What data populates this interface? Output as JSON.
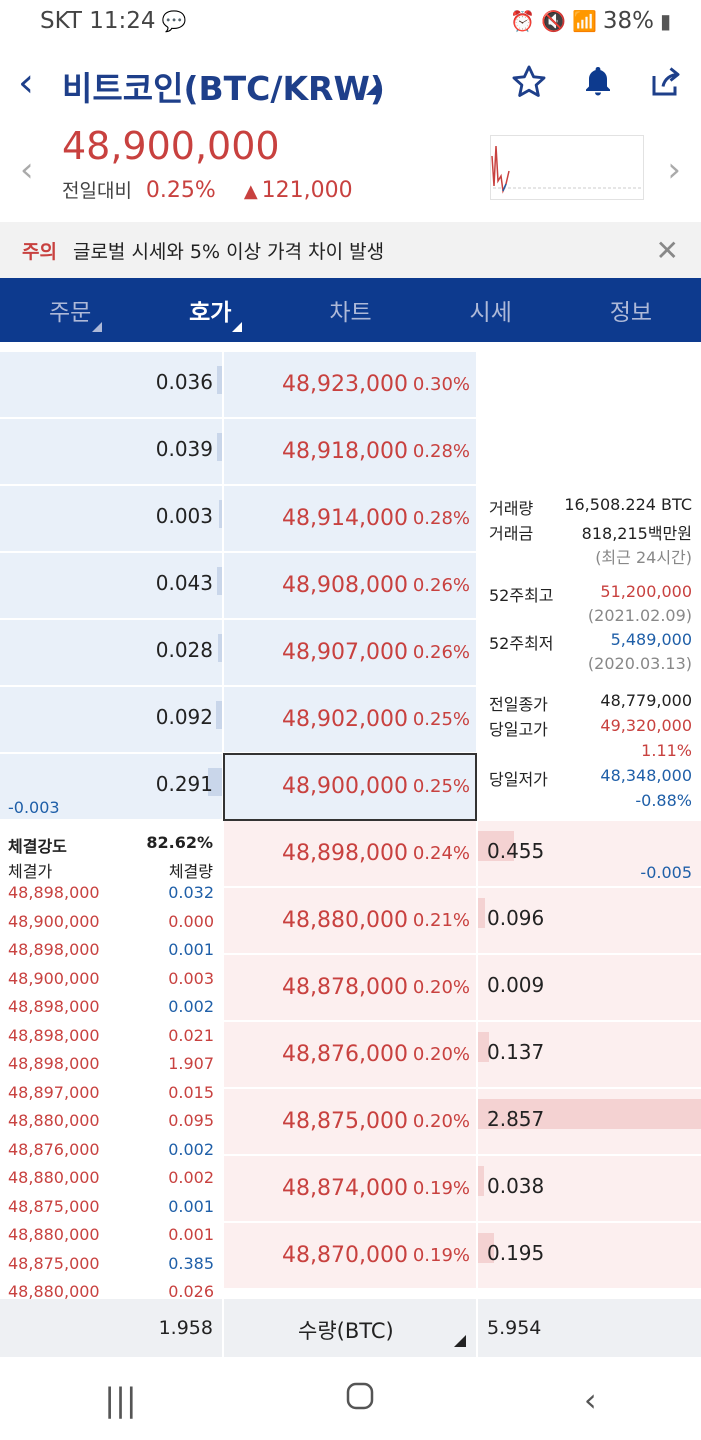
{
  "status": {
    "carrier_time": "SKT 11:24",
    "battery": "38%"
  },
  "header": {
    "title": "비트코인(BTC/KRW)"
  },
  "price": {
    "current": "48,900,000",
    "change_label": "전일대비",
    "change_pct": "0.25%",
    "change_amt": "121,000"
  },
  "notice": {
    "tag": "주의",
    "message": "글로벌 시세와 5% 이상 가격 차이 발생"
  },
  "tabs": [
    {
      "label": "주문",
      "active": false
    },
    {
      "label": "호가",
      "active": true
    },
    {
      "label": "차트",
      "active": false
    },
    {
      "label": "시세",
      "active": false
    },
    {
      "label": "정보",
      "active": false
    }
  ],
  "asks": [
    {
      "qty": "0.036",
      "price": "48,923,000",
      "pct": "0.30%",
      "bar": 0.05
    },
    {
      "qty": "0.039",
      "price": "48,918,000",
      "pct": "0.28%",
      "bar": 0.05
    },
    {
      "qty": "0.003",
      "price": "48,914,000",
      "pct": "0.28%",
      "bar": 0.01
    },
    {
      "qty": "0.043",
      "price": "48,908,000",
      "pct": "0.26%",
      "bar": 0.05
    },
    {
      "qty": "0.028",
      "price": "48,907,000",
      "pct": "0.26%",
      "bar": 0.04
    },
    {
      "qty": "0.092",
      "price": "48,902,000",
      "pct": "0.25%",
      "bar": 0.07
    },
    {
      "qty": "0.291",
      "price": "48,900,000",
      "pct": "0.25%",
      "bar": 0.16,
      "delta": "-0.003"
    }
  ],
  "bids": [
    {
      "price": "48,898,000",
      "pct": "0.24%",
      "qty": "0.455",
      "bar": 0.16,
      "delta": "-0.005"
    },
    {
      "price": "48,880,000",
      "pct": "0.21%",
      "qty": "0.096",
      "bar": 0.03
    },
    {
      "price": "48,878,000",
      "pct": "0.20%",
      "qty": "0.009",
      "bar": 0.0
    },
    {
      "price": "48,876,000",
      "pct": "0.20%",
      "qty": "0.137",
      "bar": 0.05
    },
    {
      "price": "48,875,000",
      "pct": "0.20%",
      "qty": "2.857",
      "bar": 1.0
    },
    {
      "price": "48,874,000",
      "pct": "0.19%",
      "qty": "0.038",
      "bar": 0.02
    },
    {
      "price": "48,870,000",
      "pct": "0.19%",
      "qty": "0.195",
      "bar": 0.07
    }
  ],
  "stats": {
    "volume_label": "거래량",
    "volume": "16,508.224 BTC",
    "amount_label": "거래금",
    "amount": "818,215백만원",
    "period": "(최근 24시간)",
    "high52_label": "52주최고",
    "high52": "51,200,000",
    "high52_date": "(2021.02.09)",
    "low52_label": "52주최저",
    "low52": "5,489,000",
    "low52_date": "(2020.03.13)",
    "prev_close_label": "전일종가",
    "prev_close": "48,779,000",
    "day_high_label": "당일고가",
    "day_high": "49,320,000",
    "day_high_pct": "1.11%",
    "day_low_label": "당일저가",
    "day_low": "48,348,000",
    "day_low_pct": "-0.88%"
  },
  "trades": {
    "strength_label": "체결강도",
    "strength": "82.62%",
    "price_header": "체결가",
    "qty_header": "체결량",
    "rows": [
      {
        "price": "48,898,000",
        "qty": "0.032",
        "side": "sell"
      },
      {
        "price": "48,900,000",
        "qty": "0.000",
        "side": "buy"
      },
      {
        "price": "48,898,000",
        "qty": "0.001",
        "side": "sell"
      },
      {
        "price": "48,900,000",
        "qty": "0.003",
        "side": "buy"
      },
      {
        "price": "48,898,000",
        "qty": "0.002",
        "side": "sell"
      },
      {
        "price": "48,898,000",
        "qty": "0.021",
        "side": "buy"
      },
      {
        "price": "48,898,000",
        "qty": "1.907",
        "side": "buy"
      },
      {
        "price": "48,897,000",
        "qty": "0.015",
        "side": "buy"
      },
      {
        "price": "48,880,000",
        "qty": "0.095",
        "side": "buy"
      },
      {
        "price": "48,876,000",
        "qty": "0.002",
        "side": "sell"
      },
      {
        "price": "48,880,000",
        "qty": "0.002",
        "side": "buy"
      },
      {
        "price": "48,875,000",
        "qty": "0.001",
        "side": "sell"
      },
      {
        "price": "48,880,000",
        "qty": "0.001",
        "side": "buy"
      },
      {
        "price": "48,875,000",
        "qty": "0.385",
        "side": "sell"
      },
      {
        "price": "48,880,000",
        "qty": "0.026",
        "side": "buy"
      }
    ]
  },
  "totals": {
    "ask_total": "1.958",
    "unit_label": "수량(BTC)",
    "bid_total": "5.954"
  },
  "colors": {
    "red": "#c8413f",
    "blue": "#1f5fa8",
    "navy": "#0d3a8e"
  }
}
